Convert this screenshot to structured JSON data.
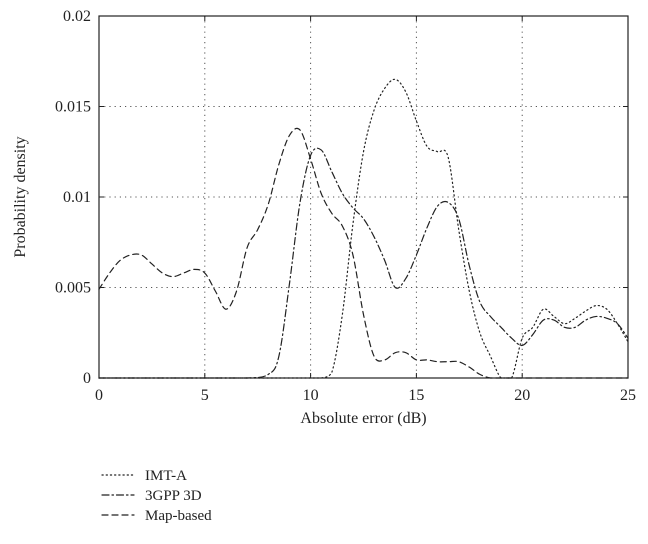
{
  "chart_data": {
    "type": "line",
    "title": "",
    "xlabel": "Absolute error (dB)",
    "ylabel": "Probability density",
    "xlim": [
      0,
      25
    ],
    "ylim": [
      0,
      0.02
    ],
    "x_ticks": [
      0,
      5,
      10,
      15,
      20,
      25
    ],
    "x_tick_labels": [
      "0",
      "5",
      "10",
      "15",
      "20",
      "25"
    ],
    "y_ticks": [
      0,
      0.005,
      0.01,
      0.015,
      0.02
    ],
    "y_tick_labels": [
      "0",
      "0.005",
      "0.01",
      "0.015",
      "0.02"
    ],
    "grid": true,
    "legend_position": "below",
    "series": [
      {
        "name": "IMT-A",
        "style": "dotted",
        "color": "#222222",
        "x": [
          0,
          1,
          3,
          5,
          7,
          9,
          10,
          10.5,
          11,
          11.5,
          12,
          12.5,
          13,
          13.5,
          14,
          14.5,
          15,
          15.5,
          16,
          16.5,
          17,
          17.5,
          18,
          18.5,
          19,
          19.5,
          20,
          20.5,
          21,
          21.5,
          22,
          22.5,
          23,
          23.5,
          24,
          24.5,
          25
        ],
        "y": [
          0,
          0,
          0,
          0,
          0,
          0,
          0,
          0,
          0.0003,
          0.0035,
          0.0085,
          0.0125,
          0.0148,
          0.016,
          0.0165,
          0.0158,
          0.0142,
          0.0128,
          0.0125,
          0.0122,
          0.0082,
          0.0048,
          0.0025,
          0.0012,
          0,
          0,
          0.0022,
          0.0028,
          0.0038,
          0.0034,
          0.003,
          0.0033,
          0.0037,
          0.004,
          0.0038,
          0.003,
          0.002
        ]
      },
      {
        "name": "3GPP 3D",
        "style": "dashdot",
        "color": "#222222",
        "x": [
          0,
          1,
          3,
          5,
          7,
          8,
          8.5,
          9,
          9.5,
          10,
          10.5,
          11,
          11.5,
          12,
          12.5,
          13,
          13.5,
          14,
          14.5,
          15,
          15.5,
          16,
          16.5,
          17,
          17.5,
          18,
          18.5,
          19,
          19.5,
          20,
          20.5,
          21,
          21.5,
          22,
          22.5,
          23,
          23.5,
          24,
          24.5,
          25
        ],
        "y": [
          0,
          0,
          0,
          0,
          0,
          0.0002,
          0.0012,
          0.0052,
          0.0097,
          0.0123,
          0.0126,
          0.0114,
          0.0102,
          0.0094,
          0.0088,
          0.0078,
          0.0065,
          0.005,
          0.0055,
          0.0068,
          0.0083,
          0.0095,
          0.0097,
          0.0088,
          0.0062,
          0.0042,
          0.0034,
          0.0028,
          0.0022,
          0.0018,
          0.0024,
          0.0032,
          0.0032,
          0.0028,
          0.0028,
          0.0032,
          0.0034,
          0.0033,
          0.003,
          0.0022
        ]
      },
      {
        "name": "Map-based",
        "style": "dashed",
        "color": "#222222",
        "x": [
          0,
          0.5,
          1,
          1.5,
          2,
          2.5,
          3,
          3.5,
          4,
          4.5,
          5,
          5.5,
          6,
          6.5,
          7,
          7.5,
          8,
          8.5,
          9,
          9.5,
          10,
          10.5,
          11,
          11.5,
          12,
          12.5,
          13,
          13.5,
          14,
          14.5,
          15,
          15.5,
          16,
          16.5,
          17,
          17.5,
          18,
          18.5,
          19,
          20,
          22,
          25
        ],
        "y": [
          0.0049,
          0.0058,
          0.0065,
          0.0068,
          0.0068,
          0.0063,
          0.0058,
          0.0056,
          0.0058,
          0.006,
          0.0058,
          0.0048,
          0.0038,
          0.0048,
          0.0072,
          0.0082,
          0.0096,
          0.0118,
          0.0134,
          0.0137,
          0.0121,
          0.0102,
          0.0091,
          0.0084,
          0.0068,
          0.0035,
          0.0012,
          0.001,
          0.0014,
          0.0014,
          0.001,
          0.001,
          0.0009,
          0.0009,
          0.0009,
          0.0006,
          0.0002,
          0,
          0,
          0,
          0,
          0
        ]
      }
    ]
  }
}
